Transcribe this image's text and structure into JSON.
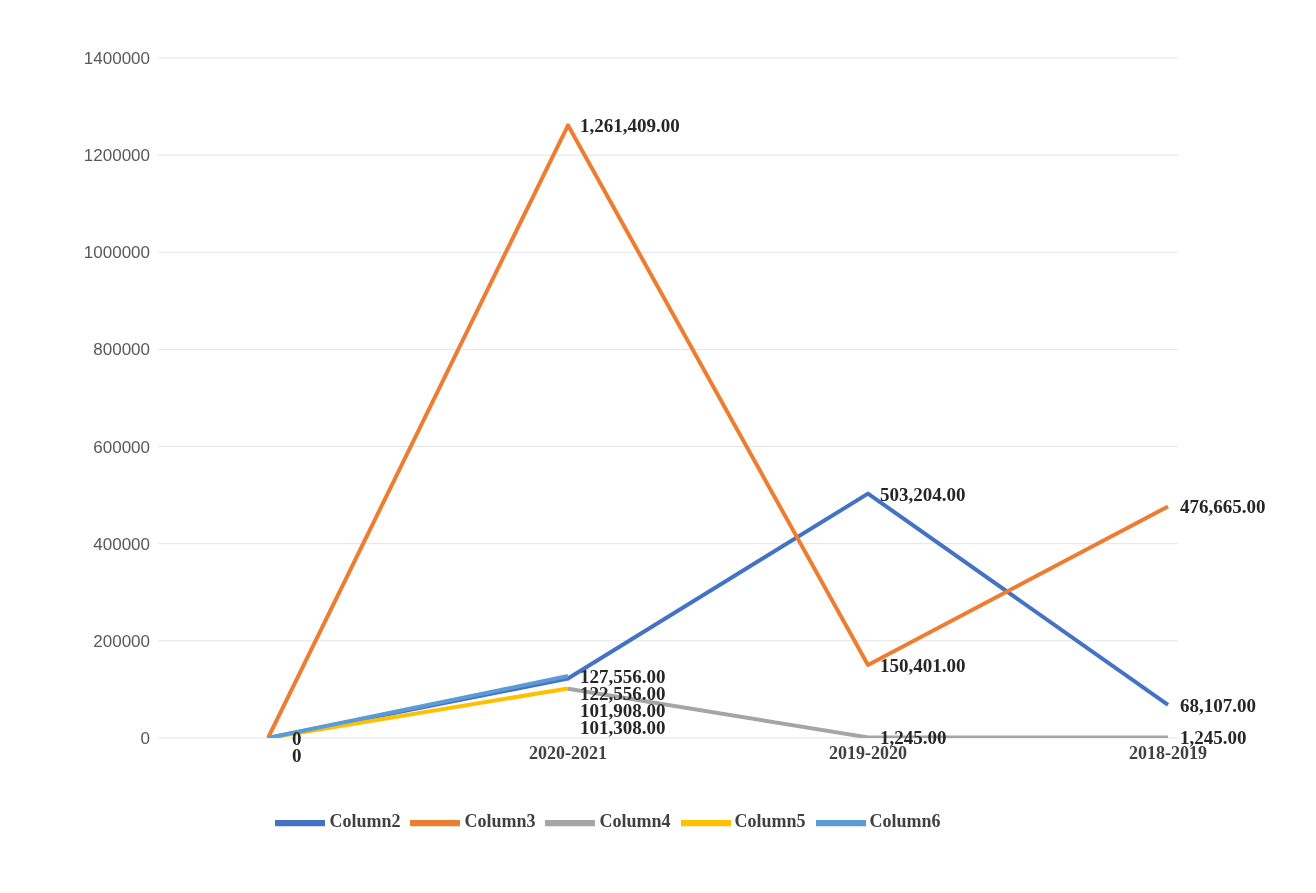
{
  "chart_data": {
    "type": "line",
    "categories": [
      null,
      "2020-2021",
      "2019-2020",
      "2018-2019"
    ],
    "series": [
      {
        "name": "Column2",
        "color": "#4472c4",
        "values": [
          0,
          122556,
          503204,
          68107
        ],
        "value_labels": [
          "0",
          "122,556.00",
          "503,204.00",
          "68,107.00"
        ]
      },
      {
        "name": "Column3",
        "color": "#ed7d31",
        "values": [
          0,
          1261409,
          150401,
          476665
        ],
        "value_labels": [
          "0",
          "1,261,409.00",
          "150,401.00",
          "476,665.00"
        ]
      },
      {
        "name": "Column4",
        "color": "#a5a5a5",
        "values": [
          null,
          101308,
          1245,
          1245
        ],
        "value_labels": [
          null,
          "101,308.00",
          "1,245.00",
          "1,245.00"
        ]
      },
      {
        "name": "Column5",
        "color": "#ffc000",
        "values": [
          0,
          101908,
          null,
          null
        ],
        "value_labels": [
          null,
          "101,908.00",
          null,
          null
        ]
      },
      {
        "name": "Column6",
        "color": "#5b9bd5",
        "values": [
          0,
          127556,
          null,
          null
        ],
        "value_labels": [
          null,
          "127,556.00",
          null,
          null
        ]
      }
    ],
    "ylim": [
      0,
      1400000
    ],
    "yticks": [
      0,
      200000,
      400000,
      600000,
      800000,
      1000000,
      1200000,
      1400000
    ],
    "grid": "y",
    "legend": "bottom",
    "marker": "none",
    "line_style": "solid"
  }
}
